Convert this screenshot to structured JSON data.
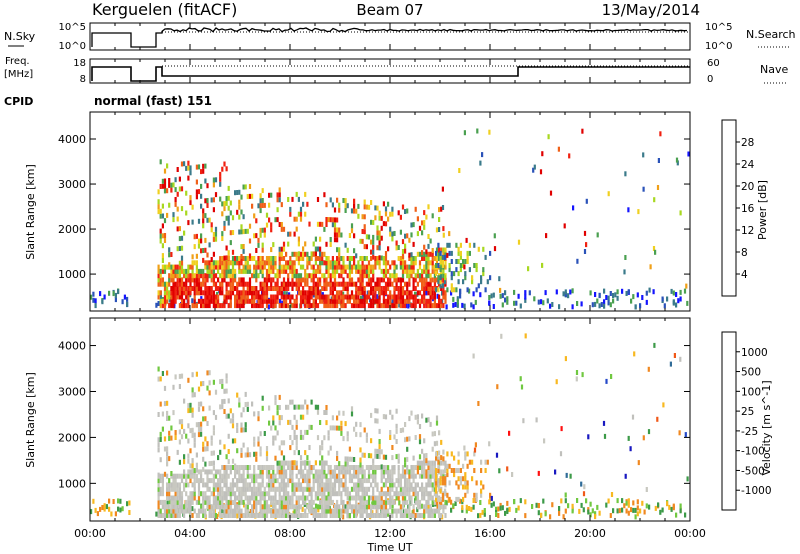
{
  "header": {
    "station": "Kerguelen (fitACF)",
    "beam": "Beam 07",
    "date": "13/May/2014"
  },
  "top_panels": {
    "nsky_label": "N.Sky",
    "nsky_top_tick": "10^5",
    "nsky_bottom_tick": "10^0",
    "nsearch_label": "N.Search",
    "nsearch_top_tick": "10^5",
    "nsearch_bottom_tick": "10^0",
    "freq_label_1": "Freq.",
    "freq_label_2": "[MHz]",
    "freq_top_tick": "18",
    "freq_bottom_tick": "8",
    "nave_label": "Nave",
    "nave_top_tick": "60",
    "nave_bottom_tick": "0",
    "cpid_label": "CPID",
    "cpid_value": "normal (fast) 151"
  },
  "colors": {
    "power_scale": [
      "#1414ff",
      "#2a52b8",
      "#3a7a8a",
      "#4aa050",
      "#a8d820",
      "#f0d020",
      "#f0a018",
      "#f06018",
      "#f02010",
      "#e00000"
    ],
    "velocity_scale": [
      "#ff1010",
      "#f05818",
      "#f08820",
      "#f8b820",
      "#c8c8c0",
      "#c0c0bc",
      "#70c840",
      "#3c9a48",
      "#306c98",
      "#2448c8",
      "#1818c0"
    ]
  },
  "chart_data": [
    {
      "type": "heatmap",
      "quantity": "Power",
      "x_range_hours": [
        0,
        24
      ],
      "ylabel": "Slant Range [km]",
      "ylim": [
        180,
        4600
      ],
      "yticks": [
        1000,
        2000,
        3000,
        4000
      ],
      "colorbar_label": "Power [dB]",
      "colorbar_ticks": [
        "4",
        "8",
        "12",
        "16",
        "20",
        "24",
        "28"
      ]
    },
    {
      "type": "heatmap",
      "quantity": "Velocity",
      "x_range_hours": [
        0,
        24
      ],
      "ylabel": "Slant Range [km]",
      "ylim": [
        180,
        4600
      ],
      "yticks": [
        1000,
        2000,
        3000,
        4000
      ],
      "colorbar_label": "Velocity [m s^-1]",
      "colorbar_ticks": [
        "-1000",
        "-500",
        "-100",
        "-25",
        "25",
        "100",
        "500",
        "1000"
      ]
    }
  ],
  "x_axis": {
    "xlabel": "Time UT",
    "tick_labels": [
      "00:00",
      "04:00",
      "08:00",
      "12:00",
      "16:00",
      "20:00",
      "00:00"
    ]
  }
}
